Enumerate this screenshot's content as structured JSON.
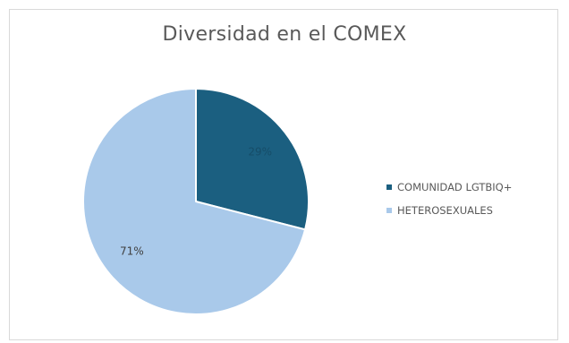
{
  "chart_data": {
    "type": "pie",
    "title": "Diversidad en el COMEX",
    "slices": [
      {
        "name": "COMUNIDAD LGTBIQ+",
        "value": 29,
        "label": "29%",
        "color": "#1b5f80",
        "label_color": "#164d68"
      },
      {
        "name": "HETEROSEXUALES",
        "value": 71,
        "label": "71%",
        "color": "#a9c9ea",
        "label_color": "#404040"
      }
    ],
    "start_angle_deg": 0,
    "direction": "clockwise",
    "legend_position": "right",
    "slice_border_color": "#ffffff"
  }
}
